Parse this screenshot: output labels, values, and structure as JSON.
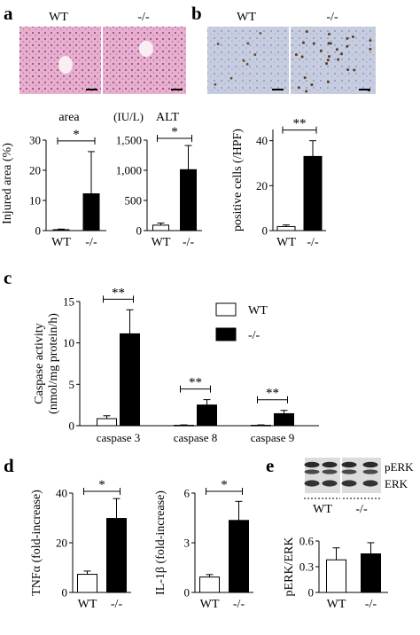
{
  "panels": {
    "a": {
      "label": "a",
      "images": [
        {
          "label": "WT"
        },
        {
          "label": "-/-"
        }
      ],
      "pattern_color": "#c07aa8"
    },
    "b": {
      "label": "b",
      "images": [
        {
          "label": "WT"
        },
        {
          "label": "-/-"
        }
      ],
      "pattern_color": "#9fa9c0"
    },
    "c": {
      "label": "c"
    },
    "d": {
      "label": "d"
    },
    "e": {
      "label": "e",
      "blot": {
        "bands": [
          "pERK",
          "ERK"
        ],
        "groups": [
          "WT",
          "-/-"
        ]
      }
    }
  },
  "colors": {
    "filled": "#000000",
    "open": "#ffffff",
    "stroke": "#000000"
  },
  "chart_data": [
    {
      "id": "a-area",
      "type": "bar",
      "title": "area",
      "unit": "",
      "ylabel": "Injured area (%)",
      "categories": [
        "WT",
        "-/-"
      ],
      "values": [
        0.3,
        12.2
      ],
      "errors": [
        0.2,
        14
      ],
      "fills": [
        "open",
        "filled"
      ],
      "ylim": [
        0,
        30
      ],
      "yticks": [
        "0",
        "10",
        "20",
        "30"
      ],
      "sig": [
        {
          "i": 0,
          "j": 1,
          "label": "*"
        }
      ]
    },
    {
      "id": "a-alt",
      "type": "bar",
      "title": "ALT",
      "unit": "(IU/L)",
      "ylabel": "",
      "categories": [
        "WT",
        "-/-"
      ],
      "values": [
        90,
        1010
      ],
      "errors": [
        35,
        400
      ],
      "fills": [
        "open",
        "filled"
      ],
      "ylim": [
        0,
        1500
      ],
      "yticks": [
        "0",
        "500",
        "1,000",
        "1,500"
      ],
      "sig": [
        {
          "i": 0,
          "j": 1,
          "label": "*"
        }
      ]
    },
    {
      "id": "b-pos",
      "type": "bar",
      "title": "",
      "unit": "",
      "ylabel": "positive cells (/HPF)",
      "categories": [
        "WT",
        "-/-"
      ],
      "values": [
        1.8,
        33
      ],
      "errors": [
        0.7,
        7
      ],
      "fills": [
        "open",
        "filled"
      ],
      "ylim": [
        0,
        45
      ],
      "yticks": [
        "0",
        "20",
        "40"
      ],
      "sig": [
        {
          "i": 0,
          "j": 1,
          "label": "**"
        }
      ]
    },
    {
      "id": "c-caspase",
      "type": "bar",
      "title": "",
      "unit": "",
      "ylabel": "Caspase activity",
      "ylabel2": "(nmol/mg protein/h)",
      "categories": [
        "caspase 3",
        "caspase 8",
        "caspase 9"
      ],
      "series": [
        {
          "name": "WT",
          "values": [
            0.85,
            0.05,
            0.05
          ],
          "errors": [
            0.35,
            0.05,
            0.05
          ],
          "fill": "open"
        },
        {
          "name": "-/-",
          "values": [
            11.1,
            2.5,
            1.45
          ],
          "errors": [
            2.9,
            0.65,
            0.4
          ],
          "fill": "filled"
        }
      ],
      "ylim": [
        0,
        15
      ],
      "yticks": [
        "0",
        "5",
        "10",
        "15"
      ],
      "sig": [
        {
          "g": 0,
          "label": "**"
        },
        {
          "g": 1,
          "label": "**"
        },
        {
          "g": 2,
          "label": "**"
        }
      ]
    },
    {
      "id": "d-tnf",
      "type": "bar",
      "title": "",
      "unit": "",
      "ylabel": "TNFα (fold-increase)",
      "categories": [
        "WT",
        "-/-"
      ],
      "values": [
        7.3,
        29.8
      ],
      "errors": [
        1.3,
        8
      ],
      "fills": [
        "open",
        "filled"
      ],
      "ylim": [
        0,
        40
      ],
      "yticks": [
        "0",
        "20",
        "40"
      ],
      "sig": [
        {
          "i": 0,
          "j": 1,
          "label": "*"
        }
      ]
    },
    {
      "id": "d-il1b",
      "type": "bar",
      "title": "",
      "unit": "",
      "ylabel": "IL-1β (fold-increase)",
      "categories": [
        "WT",
        "-/-"
      ],
      "values": [
        0.93,
        4.35
      ],
      "errors": [
        0.15,
        1.15
      ],
      "fills": [
        "open",
        "filled"
      ],
      "ylim": [
        0,
        6
      ],
      "yticks": [
        "0",
        "3",
        "6"
      ],
      "sig": [
        {
          "i": 0,
          "j": 1,
          "label": "*"
        }
      ]
    },
    {
      "id": "e-perk",
      "type": "bar",
      "title": "",
      "unit": "",
      "ylabel": "pERK/ERK",
      "categories": [
        "WT",
        "-/-"
      ],
      "values": [
        0.38,
        0.45
      ],
      "errors": [
        0.14,
        0.13
      ],
      "fills": [
        "open",
        "filled"
      ],
      "ylim": [
        0,
        0.6
      ],
      "yticks": [
        "0",
        "0.3",
        "0.6"
      ],
      "sig": []
    }
  ]
}
